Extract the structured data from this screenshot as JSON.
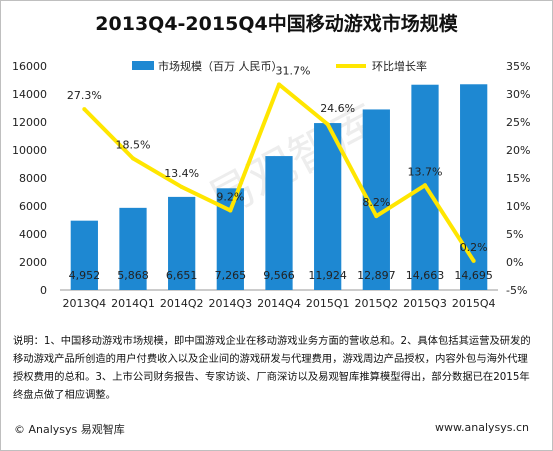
{
  "title": "2013Q4-2015Q4中国移动游戏市场规模",
  "chart_data": {
    "type": "bar+line",
    "categories": [
      "2013Q4",
      "2014Q1",
      "2014Q2",
      "2014Q3",
      "2014Q4",
      "2015Q1",
      "2015Q2",
      "2015Q3",
      "2015Q4"
    ],
    "series": [
      {
        "name": "市场规模（百万 人民币）",
        "type": "bar",
        "axis": "left",
        "color": "#1e88d2",
        "values": [
          4952,
          5868,
          6651,
          7265,
          9566,
          11924,
          12897,
          14663,
          14695
        ],
        "labels": [
          "4,952",
          "5,868",
          "6,651",
          "7,265",
          "9,566",
          "11,924",
          "12,897",
          "14,663",
          "14,695"
        ]
      },
      {
        "name": "环比增长率",
        "type": "line",
        "axis": "right",
        "color": "#ffe600",
        "values": [
          27.3,
          18.5,
          13.4,
          9.2,
          31.7,
          24.6,
          8.2,
          13.7,
          0.2
        ],
        "labels": [
          "27.3%",
          "18.5%",
          "13.4%",
          "9.2%",
          "31.7%",
          "24.6%",
          "8.2%",
          "13.7%",
          "0.2%"
        ]
      }
    ],
    "left_axis": {
      "min": 0,
      "max": 16000,
      "ticks": [
        "0",
        "2000",
        "4000",
        "6000",
        "8000",
        "10000",
        "12000",
        "14000",
        "16000"
      ]
    },
    "right_axis": {
      "min": -5,
      "max": 35,
      "ticks": [
        "-5%",
        "0%",
        "5%",
        "10%",
        "15%",
        "20%",
        "25%",
        "30%",
        "35%"
      ]
    },
    "legend_position": "top",
    "grid": false,
    "watermark": "易观智库"
  },
  "notes": "说明：1、中国移动游戏市场规模，即中国游戏企业在移动游戏业务方面的营收总和。2、具体包括其运营及研发的移动游戏产品所创造的用户付费收入以及企业间的游戏研发与代理费用，游戏周边产品授权，内容外包与海外代理授权费用的总和。3、上市公司财务报告、专家访谈、厂商深访以及易观智库推算模型得出，部分数据已在2015年终盘点做了相应调整。",
  "footer_left": "© Analysys 易观智库",
  "footer_right": "www.analysys.cn"
}
